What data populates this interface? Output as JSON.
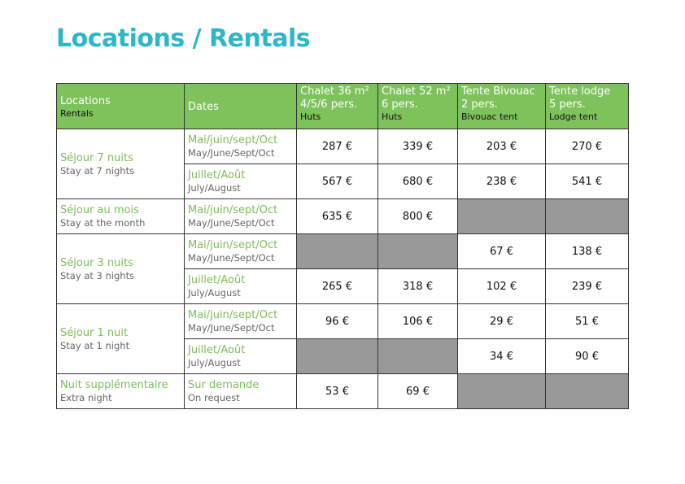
{
  "title": "Locations / Rentals",
  "headers": [
    {
      "l1": "Locations",
      "l3": "Rentals"
    },
    {
      "l1": "Dates"
    },
    {
      "l1": "Chalet 36 m²",
      "l2": "4/5/6 pers.",
      "l3": "Huts"
    },
    {
      "l1": "Chalet 52 m²",
      "l2": "6 pers.",
      "l3": "Huts"
    },
    {
      "l1": "Tente Bivouac",
      "l2": "2 pers.",
      "l3": "Bivouac tent"
    },
    {
      "l1": "Tente lodge",
      "l2": "5 pers.",
      "l3": "Lodge tent"
    }
  ],
  "groups": [
    {
      "fr": "Séjour 7 nuits",
      "en": "Stay at 7 nights"
    },
    {
      "fr": "Séjour au mois",
      "en": "Stay at the month"
    },
    {
      "fr": "Séjour 3 nuits",
      "en": "Stay at 3 nights"
    },
    {
      "fr": "Séjour 1 nuit",
      "en": "Stay at 1 night"
    },
    {
      "fr": "Nuit supplémentaire",
      "en": "Extra night"
    }
  ],
  "dates": {
    "low": {
      "fr": "Mai/juin/sept/Oct",
      "en": "May/June/Sept/Oct"
    },
    "high": {
      "fr": "Juillet/Août",
      "en": "July/August"
    },
    "req": {
      "fr": "Sur demande",
      "en": "On request"
    }
  },
  "rows": [
    [
      "287 €",
      "339 €",
      "203 €",
      "270 €"
    ],
    [
      "567 €",
      "680 €",
      "238 €",
      "541 €"
    ],
    [
      "635 €",
      "800 €",
      null,
      null
    ],
    [
      null,
      null,
      "67 €",
      "138 €"
    ],
    [
      "265 €",
      "318 €",
      "102 €",
      "239 €"
    ],
    [
      "96 €",
      "106 €",
      "29 €",
      "51 €"
    ],
    [
      null,
      null,
      "34 €",
      "90 €"
    ],
    [
      "53 €",
      "69 €",
      null,
      null
    ]
  ]
}
